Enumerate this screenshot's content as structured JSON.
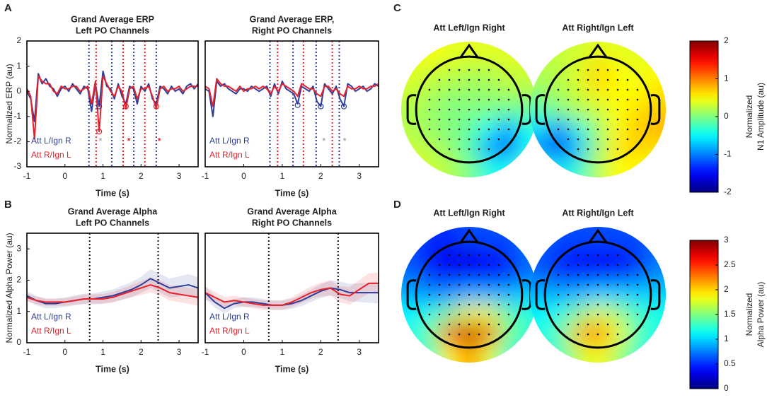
{
  "panels": [
    "A",
    "B",
    "C",
    "D"
  ],
  "chart_data": [
    {
      "type": "line",
      "title": [
        "Grand Average ERP",
        "Left PO Channels"
      ],
      "xlabel": "Time (s)",
      "ylabel": "Normalized ERP (au)",
      "xlim": [
        -1,
        3.5
      ],
      "xticks": [
        -1,
        0,
        1,
        2,
        3
      ],
      "ylim": [
        -3,
        2
      ],
      "yticks": [
        -3,
        -2,
        -1,
        0,
        1,
        2
      ],
      "legend": "lower left",
      "x": [
        -1.0,
        -0.9,
        -0.8,
        -0.7,
        -0.6,
        -0.5,
        -0.4,
        -0.3,
        -0.2,
        -0.1,
        0.0,
        0.1,
        0.2,
        0.3,
        0.4,
        0.5,
        0.6,
        0.7,
        0.8,
        0.9,
        1.0,
        1.1,
        1.2,
        1.3,
        1.4,
        1.5,
        1.6,
        1.7,
        1.8,
        1.9,
        2.0,
        2.1,
        2.2,
        2.3,
        2.4,
        2.5,
        2.6,
        2.7,
        2.8,
        2.9,
        3.0,
        3.1,
        3.2,
        3.3,
        3.4,
        3.5
      ],
      "series": [
        {
          "name": "Att L/Ign R",
          "color": "#2c3e9a",
          "values": [
            0,
            -0.3,
            -1.2,
            0.7,
            0.3,
            0.5,
            0.2,
            0.1,
            -0.2,
            0.1,
            0.2,
            0,
            0.3,
            0.1,
            -0.1,
            0.2,
            0.1,
            -0.8,
            0.3,
            -0.6,
            0.8,
            0.2,
            0.1,
            -0.3,
            0.3,
            -0.2,
            -0.5,
            0.2,
            0.1,
            -0.5,
            0.2,
            0,
            0.3,
            -0.3,
            -0.5,
            0.2,
            0.1,
            -0.1,
            0.2,
            0,
            0.1,
            -0.1,
            0.2,
            0.3,
            0.1,
            0.3
          ]
        },
        {
          "name": "Att R/Ign L",
          "color": "#e8202a",
          "values": [
            0.1,
            -0.2,
            -1.9,
            0.6,
            0.4,
            0.3,
            0.3,
            0,
            -0.1,
            0.2,
            0.1,
            0.1,
            0.2,
            0.2,
            0,
            0.1,
            0.2,
            -0.5,
            0.4,
            -1.6,
            0.6,
            0.3,
            0,
            -0.2,
            0.2,
            0,
            -0.7,
            0.1,
            0.2,
            -0.3,
            0.1,
            0.1,
            0.2,
            -0.2,
            -0.7,
            0.1,
            0.2,
            0,
            0.1,
            0.1,
            0.2,
            0,
            0.1,
            0.2,
            0.2,
            0.2
          ]
        }
      ],
      "vlines": [
        {
          "x": 0.63,
          "color": "#2c3e9a"
        },
        {
          "x": 0.82,
          "color": "#e8202a"
        },
        {
          "x": 1.23,
          "color": "#2c3e9a"
        },
        {
          "x": 1.53,
          "color": "#e8202a"
        },
        {
          "x": 1.81,
          "color": "#2c3e9a"
        },
        {
          "x": 2.1,
          "color": "#e8202a"
        },
        {
          "x": 2.4,
          "color": "#2c3e9a"
        }
      ],
      "markers": [
        {
          "x": 0.9,
          "y": -1.6,
          "color": "#e8202a"
        },
        {
          "x": 0.9,
          "y": -0.6,
          "color": "#2c3e9a"
        },
        {
          "x": 1.6,
          "y": -0.6,
          "color": "#e8202a"
        },
        {
          "x": 2.4,
          "y": -0.6,
          "color": "#e8202a"
        }
      ],
      "stars": [
        {
          "x": 0.93,
          "y": -2.0,
          "color": "#aaaaaa",
          "label": "*"
        },
        {
          "x": 1.68,
          "y": -2.0,
          "color": "#e8202a",
          "label": "*"
        },
        {
          "x": 2.48,
          "y": -2.0,
          "color": "#e8202a",
          "label": "*"
        }
      ]
    },
    {
      "type": "line",
      "title": [
        "Grand Average ERP,",
        "Right PO Channels"
      ],
      "xlabel": "Time (s)",
      "xlim": [
        -1,
        3.5
      ],
      "xticks": [
        -1,
        0,
        1,
        2,
        3
      ],
      "ylim": [
        -3,
        2
      ],
      "legend": "lower left",
      "x": [
        -1.0,
        -0.9,
        -0.8,
        -0.7,
        -0.6,
        -0.5,
        -0.4,
        -0.3,
        -0.2,
        -0.1,
        0.0,
        0.1,
        0.2,
        0.3,
        0.4,
        0.5,
        0.6,
        0.7,
        0.8,
        0.9,
        1.0,
        1.1,
        1.2,
        1.3,
        1.4,
        1.5,
        1.6,
        1.7,
        1.8,
        1.9,
        2.0,
        2.1,
        2.2,
        2.3,
        2.4,
        2.5,
        2.6,
        2.7,
        2.8,
        2.9,
        3.0,
        3.1,
        3.2,
        3.3,
        3.4,
        3.5
      ],
      "series": [
        {
          "name": "Att L/Ign R",
          "color": "#2c3e9a",
          "values": [
            0.1,
            0,
            -1.0,
            0.4,
            0.2,
            0.3,
            0.1,
            0,
            -0.1,
            0.1,
            0.1,
            0,
            0.2,
            0.1,
            0,
            0.1,
            0.2,
            -0.2,
            0.3,
            -0.1,
            0.4,
            0.1,
            0,
            -0.1,
            -0.5,
            0.2,
            0.1,
            0,
            0.2,
            -0.4,
            -0.6,
            0.3,
            0.1,
            -0.1,
            0.2,
            -0.3,
            -0.6,
            0.3,
            0.2,
            0,
            0.1,
            0.2,
            0,
            0.1,
            0.3,
            0.2
          ]
        },
        {
          "name": "Att R/Ign L",
          "color": "#e8202a",
          "values": [
            0.2,
            0.1,
            -0.6,
            0.5,
            0.3,
            0.2,
            0.2,
            0.1,
            0,
            0.2,
            0,
            0.1,
            0.1,
            0.2,
            0.1,
            0.2,
            0.1,
            -0.1,
            0.2,
            0,
            0.3,
            0.2,
            0.1,
            0,
            -0.2,
            0.3,
            0.2,
            0.1,
            0.1,
            -0.1,
            -0.2,
            0.2,
            0.2,
            0,
            0.1,
            -0.1,
            -0.2,
            0.2,
            0.1,
            0.1,
            0.2,
            0.1,
            0.1,
            0.2,
            0.2,
            0.3
          ]
        }
      ],
      "vlines": [
        {
          "x": 0.68,
          "color": "#2c3e9a"
        },
        {
          "x": 0.88,
          "color": "#e8202a"
        },
        {
          "x": 1.28,
          "color": "#2c3e9a"
        },
        {
          "x": 1.55,
          "color": "#e8202a"
        },
        {
          "x": 1.88,
          "color": "#2c3e9a"
        },
        {
          "x": 2.3,
          "color": "#e8202a"
        },
        {
          "x": 2.48,
          "color": "#2c3e9a"
        }
      ],
      "markers": [
        {
          "x": 1.4,
          "y": -0.55,
          "color": "#2c3e9a"
        },
        {
          "x": 2.0,
          "y": -0.6,
          "color": "#2c3e9a"
        },
        {
          "x": 2.6,
          "y": -0.6,
          "color": "#2c3e9a"
        }
      ],
      "stars": [
        {
          "x": 2.08,
          "y": -2.0,
          "color": "#aaaaaa",
          "label": "*"
        },
        {
          "x": 2.62,
          "y": -2.0,
          "color": "#aaaaaa",
          "label": "*"
        }
      ]
    },
    {
      "type": "line",
      "title": [
        "Grand Average Alpha",
        "Left PO Channels"
      ],
      "xlabel": "Time (s)",
      "ylabel": "Normalized Alpha Power (au)",
      "xlim": [
        -1,
        3.5
      ],
      "xticks": [
        -1,
        0,
        1,
        2,
        3
      ],
      "ylim": [
        0,
        3.5
      ],
      "yticks": [
        0,
        1,
        2,
        3
      ],
      "legend": "lower left",
      "x": [
        -1,
        -0.75,
        -0.5,
        -0.25,
        0,
        0.25,
        0.5,
        0.75,
        1,
        1.25,
        1.5,
        1.75,
        2,
        2.25,
        2.5,
        2.75,
        3,
        3.25,
        3.5
      ],
      "series": [
        {
          "name": "Att L/Ign R",
          "color": "#2c3e9a",
          "values": [
            1.5,
            1.35,
            1.25,
            1.25,
            1.3,
            1.35,
            1.4,
            1.4,
            1.45,
            1.5,
            1.6,
            1.7,
            1.85,
            2.05,
            1.9,
            1.75,
            1.8,
            1.85,
            1.75
          ],
          "errors": [
            0.15,
            0.15,
            0.15,
            0.15,
            0.15,
            0.16,
            0.17,
            0.18,
            0.19,
            0.2,
            0.22,
            0.24,
            0.26,
            0.3,
            0.3,
            0.3,
            0.32,
            0.34,
            0.35
          ]
        },
        {
          "name": "Att R/Ign L",
          "color": "#e8202a",
          "values": [
            1.45,
            1.35,
            1.3,
            1.3,
            1.3,
            1.35,
            1.4,
            1.4,
            1.4,
            1.45,
            1.55,
            1.65,
            1.75,
            1.85,
            1.75,
            1.6,
            1.55,
            1.5,
            1.45
          ],
          "errors": [
            0.12,
            0.12,
            0.12,
            0.12,
            0.12,
            0.13,
            0.14,
            0.15,
            0.16,
            0.17,
            0.18,
            0.2,
            0.22,
            0.24,
            0.24,
            0.25,
            0.25,
            0.26,
            0.27
          ]
        }
      ],
      "vlines": [
        {
          "x": 0.65,
          "color": "#111111"
        },
        {
          "x": 2.45,
          "color": "#111111"
        }
      ]
    },
    {
      "type": "line",
      "title": [
        "Grand Average Alpha",
        "Right PO Channels"
      ],
      "xlabel": "Time (s)",
      "xlim": [
        -1,
        3.5
      ],
      "xticks": [
        -1,
        0,
        1,
        2,
        3
      ],
      "ylim": [
        0,
        3.5
      ],
      "legend": "lower left",
      "x": [
        -1,
        -0.75,
        -0.5,
        -0.25,
        0,
        0.25,
        0.5,
        0.75,
        1,
        1.25,
        1.5,
        1.75,
        2,
        2.25,
        2.5,
        2.75,
        3,
        3.25,
        3.5
      ],
      "series": [
        {
          "name": "Att L/Ign R",
          "color": "#2c3e9a",
          "values": [
            1.6,
            1.3,
            1.1,
            1.25,
            1.3,
            1.3,
            1.25,
            1.2,
            1.2,
            1.25,
            1.35,
            1.5,
            1.65,
            1.75,
            1.7,
            1.6,
            1.6,
            1.6,
            1.6
          ],
          "errors": [
            0.2,
            0.18,
            0.16,
            0.15,
            0.15,
            0.15,
            0.15,
            0.15,
            0.15,
            0.16,
            0.18,
            0.2,
            0.22,
            0.24,
            0.26,
            0.28,
            0.3,
            0.32,
            0.34
          ]
        },
        {
          "name": "Att R/Ign L",
          "color": "#e8202a",
          "values": [
            1.6,
            1.45,
            1.3,
            1.35,
            1.3,
            1.25,
            1.2,
            1.2,
            1.2,
            1.3,
            1.45,
            1.6,
            1.7,
            1.75,
            1.55,
            1.5,
            1.7,
            1.9,
            1.9
          ],
          "errors": [
            0.2,
            0.18,
            0.16,
            0.15,
            0.15,
            0.15,
            0.15,
            0.15,
            0.15,
            0.16,
            0.18,
            0.2,
            0.22,
            0.24,
            0.26,
            0.28,
            0.3,
            0.32,
            0.34
          ]
        }
      ],
      "vlines": [
        {
          "x": 0.65,
          "color": "#111111"
        },
        {
          "x": 2.45,
          "color": "#111111"
        }
      ]
    },
    {
      "type": "topomap",
      "colorbar_label": [
        "Normalized",
        "N1 Amplitude (au)"
      ],
      "zlim": [
        -2,
        2
      ],
      "zticks": [
        -2,
        -1,
        0,
        1,
        2
      ],
      "maps": [
        {
          "title": "Att Left/Ign Right",
          "grid": [
            [
              0.5,
              0.5,
              0.4,
              0.4,
              0.4,
              0.4,
              0.4
            ],
            [
              0.4,
              0.3,
              0.3,
              0.2,
              0.2,
              0.3,
              0.3
            ],
            [
              0.3,
              0.2,
              0.1,
              0.1,
              0.1,
              0.2,
              0.2
            ],
            [
              0.2,
              0.1,
              0.0,
              0.0,
              0.0,
              -0.1,
              -0.1
            ],
            [
              0.2,
              0.1,
              0.0,
              -0.1,
              -0.5,
              -0.9,
              -0.4
            ],
            [
              0.3,
              0.2,
              0.1,
              -0.2,
              -0.9,
              -1.3,
              -0.5
            ],
            [
              0.4,
              0.3,
              0.2,
              0.0,
              -0.4,
              -0.5,
              -0.1
            ]
          ]
        },
        {
          "title": "Att Right/Ign Left",
          "grid": [
            [
              0.3,
              0.3,
              0.3,
              0.4,
              0.4,
              0.4,
              0.4
            ],
            [
              0.2,
              0.2,
              0.4,
              0.7,
              0.5,
              0.4,
              0.5
            ],
            [
              0.1,
              0.2,
              0.3,
              0.6,
              0.5,
              0.5,
              0.6
            ],
            [
              -0.2,
              0.0,
              0.2,
              0.3,
              0.5,
              0.6,
              0.7
            ],
            [
              -0.6,
              -1.0,
              -0.4,
              0.1,
              0.5,
              0.7,
              0.8
            ],
            [
              -1.0,
              -1.5,
              -0.8,
              0.1,
              0.6,
              0.7,
              0.6
            ],
            [
              -0.3,
              -0.6,
              -0.3,
              0.2,
              0.5,
              0.5,
              0.4
            ]
          ]
        }
      ]
    },
    {
      "type": "topomap",
      "colorbar_label": [
        "Normalized",
        "Alpha Power (au)"
      ],
      "zlim": [
        0,
        3
      ],
      "zticks": [
        0,
        0.5,
        1,
        1.5,
        2,
        2.5,
        3
      ],
      "maps": [
        {
          "title": "Att Left/Ign Right",
          "grid": [
            [
              0.6,
              0.5,
              0.5,
              0.6,
              0.6,
              0.6,
              0.7
            ],
            [
              0.6,
              0.4,
              0.3,
              0.3,
              0.4,
              0.5,
              0.7
            ],
            [
              0.7,
              0.5,
              0.4,
              0.4,
              0.4,
              0.5,
              0.7
            ],
            [
              0.9,
              0.8,
              0.8,
              0.9,
              0.9,
              0.9,
              1.0
            ],
            [
              1.1,
              1.2,
              1.5,
              1.9,
              1.8,
              1.4,
              1.2
            ],
            [
              1.2,
              1.5,
              2.5,
              2.9,
              2.4,
              1.5,
              1.3
            ],
            [
              1.1,
              1.3,
              1.9,
              2.2,
              1.8,
              1.3,
              1.1
            ]
          ]
        },
        {
          "title": "Att Right/Ign Left",
          "grid": [
            [
              0.7,
              0.6,
              0.6,
              0.6,
              0.6,
              0.6,
              0.7
            ],
            [
              0.6,
              0.5,
              0.4,
              0.4,
              0.4,
              0.5,
              0.7
            ],
            [
              0.7,
              0.5,
              0.5,
              0.5,
              0.5,
              0.6,
              0.8
            ],
            [
              0.9,
              0.9,
              0.9,
              1.0,
              1.0,
              1.0,
              1.0
            ],
            [
              1.1,
              1.2,
              1.5,
              1.8,
              1.6,
              1.3,
              1.2
            ],
            [
              1.2,
              1.4,
              2.1,
              2.3,
              1.9,
              1.4,
              1.2
            ],
            [
              1.1,
              1.3,
              1.7,
              1.9,
              1.6,
              1.3,
              1.1
            ]
          ]
        }
      ]
    }
  ]
}
